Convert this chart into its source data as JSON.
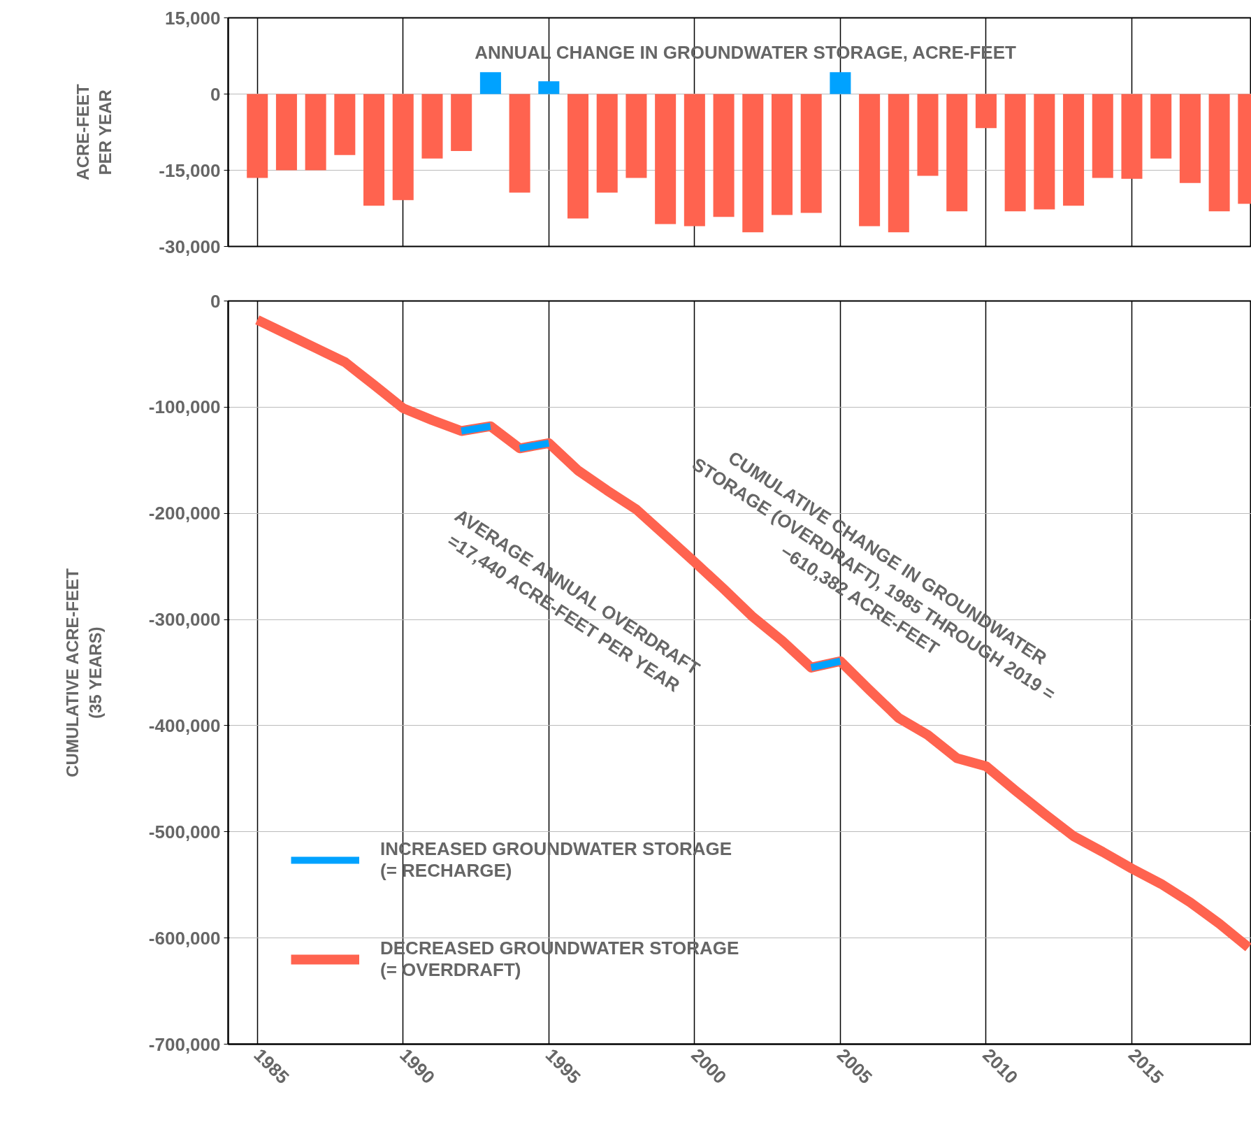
{
  "chart_data": [
    {
      "type": "bar",
      "title": "ANNUAL CHANGE IN GROUNDWATER STORAGE, ACRE-FEET",
      "ylabel": "ACRE-FEET\nPER YEAR",
      "x": [
        1985,
        1986,
        1987,
        1988,
        1989,
        1990,
        1991,
        1992,
        1993,
        1994,
        1995,
        1996,
        1997,
        1998,
        1999,
        2000,
        2001,
        2002,
        2003,
        2004,
        2005,
        2006,
        2007,
        2008,
        2009,
        2010,
        2011,
        2012,
        2013,
        2014,
        2015,
        2016,
        2017,
        2018,
        2019
      ],
      "values": [
        -16500,
        -15000,
        -15000,
        -12000,
        -22000,
        -20900,
        -12700,
        -11200,
        4300,
        -19400,
        2500,
        -24500,
        -19400,
        -16500,
        -25600,
        -26000,
        -24200,
        -27200,
        -23800,
        -23400,
        4300,
        -26000,
        -27200,
        -16100,
        -23100,
        -6700,
        -23100,
        -22700,
        -22000,
        -16500,
        -16700,
        -12700,
        -17500,
        -23100,
        -21600
      ],
      "colors": [
        "#ff634f",
        "#ff634f",
        "#ff634f",
        "#ff634f",
        "#ff634f",
        "#ff634f",
        "#ff634f",
        "#ff634f",
        "#00a2ff",
        "#ff634f",
        "#00a2ff",
        "#ff634f",
        "#ff634f",
        "#ff634f",
        "#ff634f",
        "#ff634f",
        "#ff634f",
        "#ff634f",
        "#ff634f",
        "#ff634f",
        "#00a2ff",
        "#ff634f",
        "#ff634f",
        "#ff634f",
        "#ff634f",
        "#ff634f",
        "#ff634f",
        "#ff634f",
        "#ff634f",
        "#ff634f",
        "#ff634f",
        "#ff634f",
        "#ff634f",
        "#ff634f",
        "#ff634f"
      ],
      "xlim": [
        1984,
        2019.1
      ],
      "ylim": [
        -30000,
        15000
      ],
      "xticks": [
        {
          "value": 1985,
          "label": null
        },
        {
          "value": 1990,
          "label": null
        },
        {
          "value": 1995,
          "label": null
        },
        {
          "value": 2000,
          "label": null
        },
        {
          "value": 2005,
          "label": null
        },
        {
          "value": 2010,
          "label": null
        },
        {
          "value": 2015,
          "label": null
        }
      ],
      "yticks": [
        {
          "value": 15000,
          "label": "15,000"
        },
        0,
        {
          "value": -15000,
          "label": "-15,000"
        },
        {
          "value": -30000,
          "label": "-30,000"
        }
      ],
      "grid": true,
      "tick_labels": "y"
    },
    {
      "type": "line",
      "ylabel": "CUMULATIVE ACRE-FEET\n(35 YEARS)",
      "x": [
        1985,
        1986,
        1987,
        1988,
        1989,
        1990,
        1991,
        1992,
        1993,
        1994,
        1995,
        1996,
        1997,
        1998,
        1999,
        2000,
        2001,
        2002,
        2003,
        2004,
        2005,
        2006,
        2007,
        2008,
        2009,
        2010,
        2011,
        2012,
        2013,
        2014,
        2015,
        2016,
        2017,
        2018,
        2019
      ],
      "series": [
        {
          "name": "DECREASED GROUNDWATER STORAGE\n(= OVERDRAFT)",
          "color": "#ff634f",
          "values": [
            -17800,
            -31000,
            -44300,
            -57500,
            -79000,
            -101000,
            -112300,
            -122500,
            -118000,
            -138800,
            -133900,
            -159600,
            -178500,
            -196300,
            -221000,
            -245900,
            -271200,
            -297600,
            -320000,
            -345300,
            -339300,
            -366400,
            -392700,
            -408800,
            -430700,
            -438200,
            -461000,
            -483000,
            -504100,
            -518900,
            -534600,
            -549000,
            -566400,
            -586500,
            -608900
          ]
        },
        {
          "name": "INCREASED GROUNDWATER STORAGE\n(= RECHARGE)",
          "color": "#00a2ff",
          "x": [
            1992,
            1993,
            null,
            1994,
            1995,
            null,
            2004,
            2005
          ],
          "values": [
            -122500,
            -118000,
            null,
            -138800,
            -133900,
            null,
            -345300,
            -339300
          ]
        }
      ],
      "xlim": [
        1984,
        2019.1
      ],
      "ylim": [
        -700000,
        0
      ],
      "xticks": [
        1985,
        1990,
        1995,
        2000,
        2005,
        2010,
        2015
      ],
      "yticks": [
        0,
        {
          "value": -100000,
          "label": "-100,000"
        },
        {
          "value": -200000,
          "label": "-200,000"
        },
        {
          "value": -300000,
          "label": "-300,000"
        },
        {
          "value": -400000,
          "label": "-400,000"
        },
        {
          "value": -500000,
          "label": "-500,000"
        },
        {
          "value": -600000,
          "label": "-600,000"
        },
        {
          "value": -700000,
          "label": "-700,000"
        }
      ],
      "grid": true,
      "legend": "bottom left",
      "annotations": [
        "AVERAGE ANNUAL OVERDRAFT\n=17,440 ACRE-FEET PER YEAR",
        "CUMULATIVE CHANGE IN GROUNDWATER\nSTORAGE (OVERDRAFT), 1985 THROUGH 2019 =\n−610,382 ACRE-FEET"
      ]
    }
  ]
}
